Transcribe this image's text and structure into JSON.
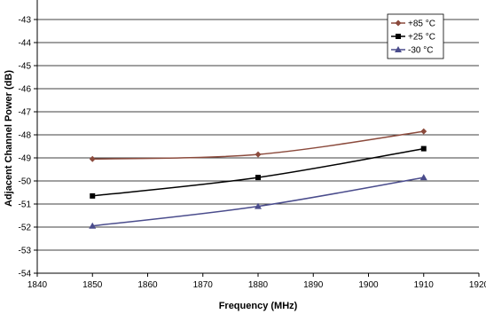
{
  "chart_data": {
    "type": "line",
    "title": "",
    "xlabel": "Frequency (MHz)",
    "ylabel": "Adjacent Channel Power (dB)",
    "xlim": [
      1840,
      1920
    ],
    "ylim": [
      -54,
      -42
    ],
    "xticks": [
      1840,
      1850,
      1860,
      1870,
      1880,
      1890,
      1900,
      1910,
      1920
    ],
    "yticks": [
      -54,
      -53,
      -52,
      -51,
      -50,
      -49,
      -48,
      -47,
      -46,
      -45,
      -44,
      -43,
      -42
    ],
    "x": [
      1850,
      1880,
      1910
    ],
    "grid": true,
    "legend_position": "top-right",
    "series": [
      {
        "name": "+85 °C",
        "values": [
          -49.05,
          -48.85,
          -47.85
        ],
        "color": "#8B4A3C",
        "marker": "diamond"
      },
      {
        "name": "+25 °C",
        "values": [
          -50.65,
          -49.85,
          -48.6
        ],
        "color": "#000000",
        "marker": "square"
      },
      {
        "name": "-30 °C",
        "values": [
          -51.95,
          -51.1,
          -49.85
        ],
        "color": "#4A4C8C",
        "marker": "triangle"
      }
    ]
  }
}
